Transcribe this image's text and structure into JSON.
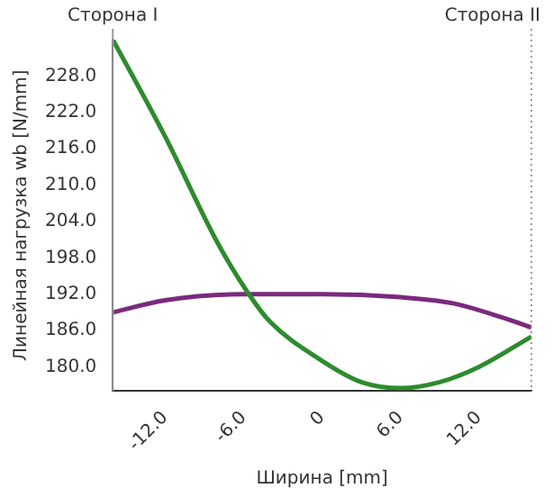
{
  "chart_data": {
    "type": "line",
    "xlabel": "Ширина [mm]",
    "ylabel": "Линейная нагрузка wb [N/mm]",
    "xlim": [
      -16,
      16
    ],
    "xticks": [
      {
        "value": -12,
        "label": "-12.0"
      },
      {
        "value": -6,
        "label": "-6.0"
      },
      {
        "value": 0,
        "label": "0"
      },
      {
        "value": 6,
        "label": "6.0"
      },
      {
        "value": 12,
        "label": "12.0"
      }
    ],
    "ylim": [
      176,
      234
    ],
    "yticks": [
      {
        "value": 180,
        "label": "180.0"
      },
      {
        "value": 186,
        "label": "186.0"
      },
      {
        "value": 192,
        "label": "192.0"
      },
      {
        "value": 198,
        "label": "198.0"
      },
      {
        "value": 204,
        "label": "204.0"
      },
      {
        "value": 210,
        "label": "210.0"
      },
      {
        "value": 216,
        "label": "216.0"
      },
      {
        "value": 222,
        "label": "222.0"
      },
      {
        "value": 228,
        "label": "228.0"
      }
    ],
    "series": [
      {
        "color": "#2e8b2e",
        "x": [
          -16,
          -12,
          -8,
          -5.6,
          -4,
          0,
          3,
          6,
          9,
          12,
          16
        ],
        "values": [
          234,
          218,
          200.5,
          192,
          187.5,
          181,
          177.5,
          176.5,
          177.5,
          180,
          185
        ]
      },
      {
        "color": "#7b2a7e",
        "x": [
          -16,
          -12,
          -6,
          0,
          6,
          10,
          14,
          16
        ],
        "values": [
          189,
          191,
          192,
          192,
          191.5,
          190.5,
          188,
          186.5
        ]
      }
    ],
    "ref_lines": [
      {
        "axis": "x",
        "value": -16,
        "label": "Сторона I"
      },
      {
        "axis": "x",
        "value": 16,
        "label": "Сторона II",
        "line_style": "dotted",
        "color": "#999999"
      }
    ],
    "grid": false,
    "legend": false,
    "marker": "none",
    "line_style": "solid"
  }
}
